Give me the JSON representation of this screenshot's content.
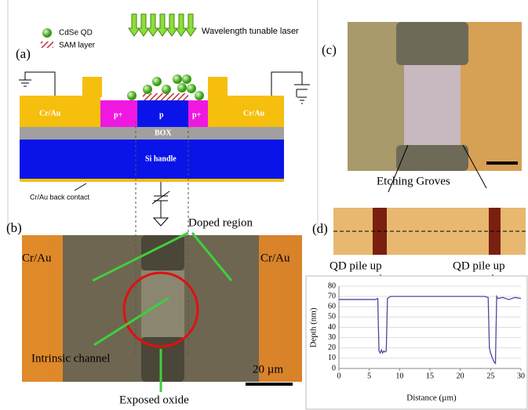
{
  "panel_a": {
    "label": "(a)",
    "legend": [
      "CdSe QD",
      "SAM layer"
    ],
    "laser": "Wavelength tunable laser",
    "layers": {
      "left_contact": "Cr/Au",
      "left_doped": "p+",
      "channel": "p",
      "right_doped": "p+",
      "right_contact": "Cr/Au",
      "box": "BOX",
      "handle": "Si handle",
      "back_contact": "Cr/Au back contact"
    }
  },
  "panel_b": {
    "label": "(b)",
    "left_contact": "Cr/Au",
    "right_contact": "Cr/Au",
    "doped": "Doped region",
    "intrinsic": "Intrinsic channel",
    "oxide": "Exposed oxide",
    "scale": "20 µm"
  },
  "panel_c": {
    "label": "(c)",
    "grooves": "Etching Groves"
  },
  "panel_d": {
    "label": "(d)",
    "pile_left": "QD pile up",
    "pile_right": "QD pile up"
  },
  "chart_data": {
    "type": "line",
    "xlabel": "Distance (µm)",
    "ylabel": "Depth (nm)",
    "x": [
      0,
      2,
      4,
      6,
      6.4,
      6.6,
      6.8,
      7.0,
      7.2,
      7.4,
      7.6,
      7.8,
      8.0,
      8.5,
      10,
      12,
      15,
      18,
      20,
      22,
      24,
      24.6,
      24.8,
      25.0,
      25.3,
      25.6,
      25.8,
      26.0,
      26.2,
      27,
      28,
      29,
      30
    ],
    "series": [
      {
        "color": "#4b4b9b",
        "values": [
          67,
          67,
          67,
          67,
          68,
          17,
          15,
          18,
          15,
          17,
          16,
          17,
          68,
          70,
          70,
          70,
          70,
          70,
          70,
          70,
          70,
          69,
          20,
          15,
          10,
          6,
          5,
          70,
          68,
          69,
          67,
          69,
          68
        ]
      }
    ],
    "xlim": [
      0,
      30
    ],
    "xticks": [
      0,
      5,
      10,
      15,
      20,
      25,
      30
    ],
    "ylim": [
      0,
      80
    ],
    "yticks": [
      0,
      10,
      20,
      30,
      40,
      50,
      60,
      70,
      80
    ],
    "grid": true
  }
}
